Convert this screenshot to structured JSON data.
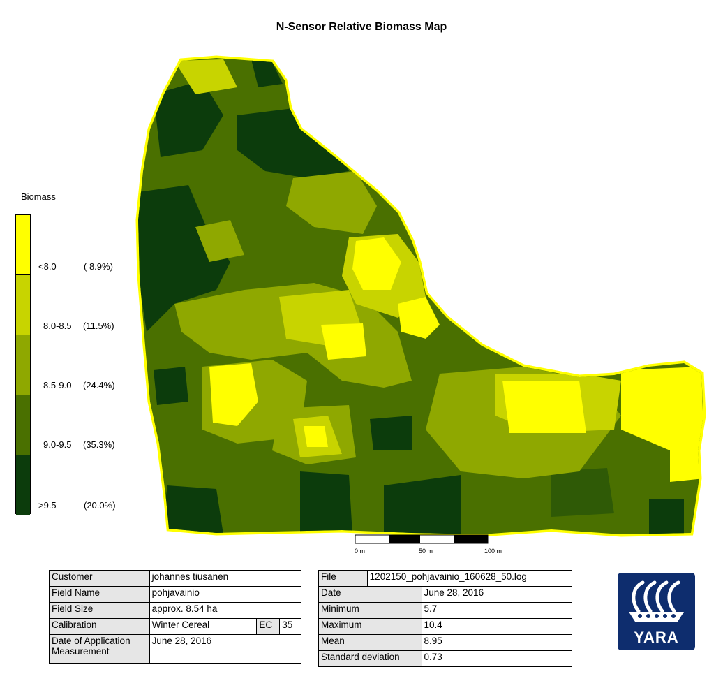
{
  "title": "N-Sensor Relative Biomass Map",
  "legend": {
    "title": "Biomass",
    "classes": [
      {
        "range": "<8.0",
        "pct": "( 8.9%)",
        "color": "#ffff00"
      },
      {
        "range": "8.0-8.5",
        "pct": "(11.5%)",
        "color": "#c8d400"
      },
      {
        "range": "8.5-9.0",
        "pct": "(24.4%)",
        "color": "#8fa800"
      },
      {
        "range": "9.0-9.5",
        "pct": "(35.3%)",
        "color": "#4a7000"
      },
      {
        "range": ">9.5",
        "pct": "(20.0%)",
        "color": "#0c3c0c"
      }
    ]
  },
  "scale": {
    "labels": [
      "0 m",
      "50 m",
      "100 m"
    ]
  },
  "field_table": {
    "customer_label": "Customer",
    "customer": "johannes tiusanen",
    "field_name_label": "Field Name",
    "field_name": "pohjavainio",
    "field_size_label": "Field Size",
    "field_size": "approx. 8.54 ha",
    "calibration_label": "Calibration",
    "calibration": "Winter Cereal",
    "ec_label": "EC",
    "ec": "35",
    "date_label": "Date of Application Measurement",
    "date": "June 28, 2016"
  },
  "stats_table": {
    "file_label": "File",
    "file": "1202150_pohjavainio_160628_50.log",
    "date_label": "Date",
    "date": "June 28, 2016",
    "min_label": "Minimum",
    "min": "5.7",
    "max_label": "Maximum",
    "max": "10.4",
    "mean_label": "Mean",
    "mean": "8.95",
    "sd_label": "Standard deviation",
    "sd": "0.73"
  },
  "logo": {
    "text": "YARA",
    "bg": "#0e2d6e"
  }
}
